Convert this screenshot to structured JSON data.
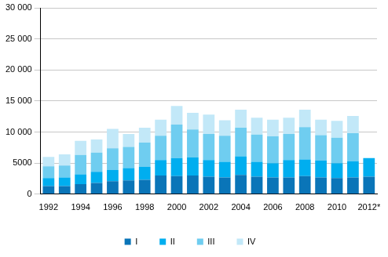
{
  "chart_data": {
    "type": "bar",
    "stacked": true,
    "grid": true,
    "legend": "bottom",
    "categories": [
      "1992",
      null,
      "1994",
      null,
      "1996",
      null,
      "1998",
      null,
      "2000",
      null,
      "2002",
      null,
      "2004",
      null,
      "2006",
      null,
      "2008",
      null,
      "2010",
      null,
      "2012*"
    ],
    "series": [
      {
        "name": "I",
        "color": "#0a75b8",
        "values": [
          1300,
          1300,
          1600,
          1800,
          2100,
          2200,
          2300,
          3000,
          2900,
          3000,
          2800,
          2700,
          3100,
          2800,
          2700,
          2700,
          2900,
          2700,
          2600,
          2700,
          2800
        ]
      },
      {
        "name": "II",
        "color": "#00aeef",
        "values": [
          1300,
          1400,
          1600,
          1800,
          1800,
          2000,
          2100,
          2500,
          2900,
          2900,
          2700,
          2500,
          3000,
          2400,
          2300,
          2800,
          2700,
          2700,
          2400,
          2600,
          3000
        ]
      },
      {
        "name": "III",
        "color": "#6fcdf0",
        "values": [
          1900,
          1900,
          3100,
          3100,
          3500,
          3400,
          3900,
          3900,
          5400,
          4500,
          4200,
          4200,
          4600,
          4400,
          4300,
          4200,
          5200,
          4100,
          4100,
          4500,
          null
        ]
      },
      {
        "name": "IV",
        "color": "#c2e8f8",
        "values": [
          1500,
          1800,
          2300,
          2100,
          3100,
          2100,
          2400,
          2600,
          3000,
          2700,
          3100,
          2500,
          2900,
          2700,
          2700,
          2600,
          2800,
          2500,
          2700,
          2800,
          null
        ]
      }
    ],
    "ylim": [
      0,
      30000
    ],
    "yticks": [
      0,
      5000,
      {
        "value": 10000,
        "label": "10 000"
      },
      {
        "value": 15000,
        "label": "15 000"
      },
      {
        "value": 20000,
        "label": "20 000"
      },
      {
        "value": 25000,
        "label": "25 000"
      },
      {
        "value": 30000,
        "label": "30 000"
      }
    ]
  }
}
